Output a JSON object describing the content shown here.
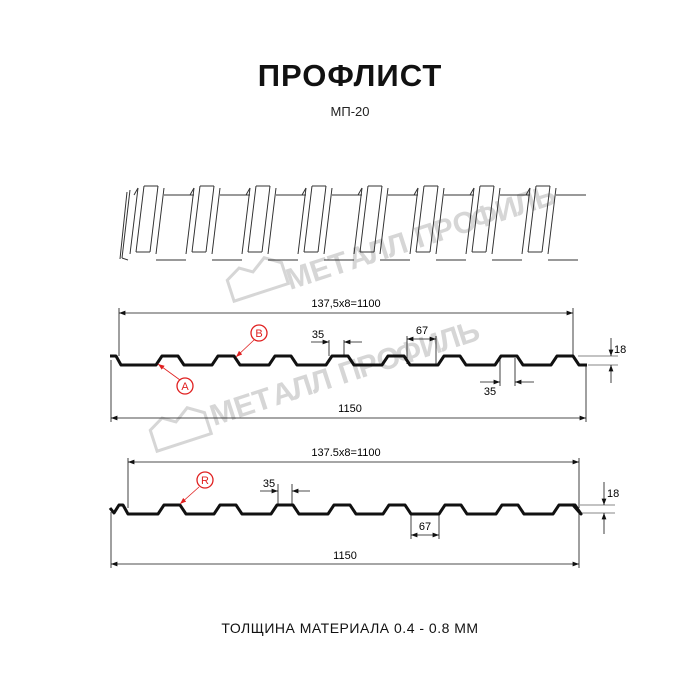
{
  "header": {
    "title": "ПРОФЛИСТ",
    "subtitle": "МП-20"
  },
  "watermark": {
    "text": "МЕТАЛЛ ПРОФИЛЬ"
  },
  "profile_top": {
    "span_label": "137,5x8=1100",
    "width_label": "1150",
    "rib_top_label": "35",
    "rib_bottom_label": "35",
    "pitch_label": "67",
    "height_label": "18",
    "marker_a": "A",
    "marker_b": "B"
  },
  "profile_bottom": {
    "span_label": "137.5x8=1100",
    "width_label": "1150",
    "rib_top_label": "35",
    "pitch_label": "67",
    "height_label": "18",
    "marker_r": "R"
  },
  "footer": {
    "text": "ТОЛЩИНА МАТЕРИАЛА 0.4 - 0.8 ММ"
  },
  "colors": {
    "line": "#111111",
    "marker": "#e02020",
    "watermark": "#d6d6d6"
  }
}
